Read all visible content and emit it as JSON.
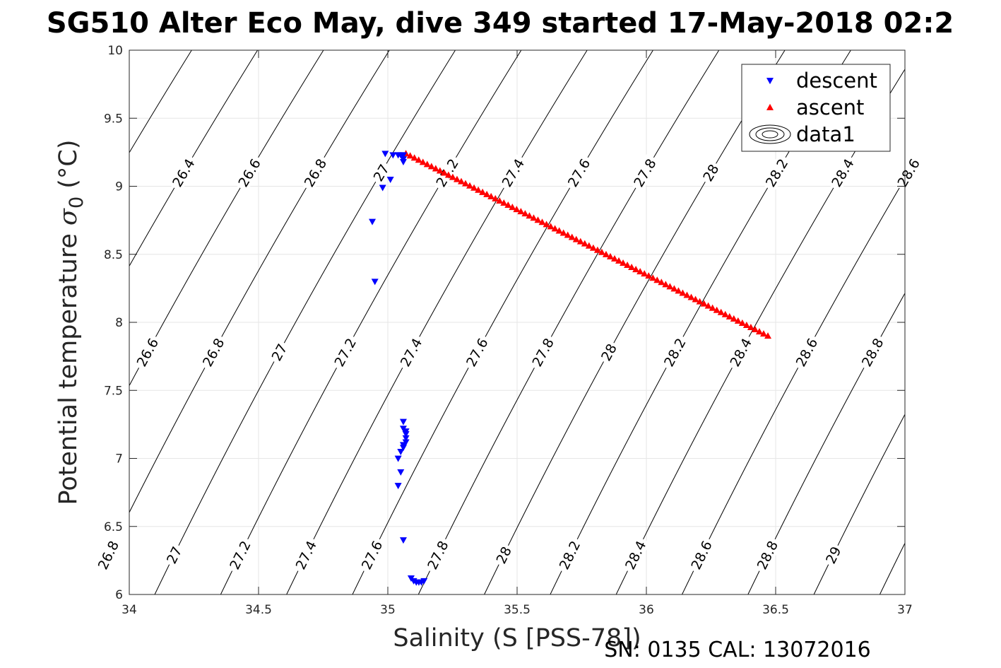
{
  "page_title": "SG510 Alter Eco May, dive 349 started 17-May-2018 02:2",
  "footer": "SN: 0135  CAL: 13072016",
  "chart_data": {
    "type": "scatter",
    "title": "SG510 Alter Eco May, dive 349 started 17-May-2018 02:2",
    "xlabel": "Salinity (S [PSS-78])",
    "ylabel_prefix": "Potential temperature ",
    "ylabel_symbol": "σ",
    "ylabel_subscript": "0",
    "ylabel_suffix": " (°C)",
    "xlim": [
      34,
      37
    ],
    "ylim": [
      6,
      10
    ],
    "x_ticks": [
      34,
      34.5,
      35,
      35.5,
      36,
      36.5,
      37
    ],
    "x_tick_labels": [
      "34",
      "34.5",
      "35",
      "35.5",
      "36",
      "36.5",
      "37"
    ],
    "y_ticks": [
      6,
      6.5,
      7,
      7.5,
      8,
      8.5,
      9,
      9.5,
      10
    ],
    "y_tick_labels": [
      "6",
      "6.5",
      "7",
      "7.5",
      "8",
      "8.5",
      "9",
      "9.5",
      "10"
    ],
    "grid": true,
    "legend_position": "top-right",
    "colors": {
      "descent": "#0000ff",
      "ascent": "#ff0000",
      "contour": "#000000",
      "grid": "#e6e6e6"
    },
    "series": [
      {
        "name": "descent",
        "marker": "triangle-down",
        "color": "#0000ff",
        "points": [
          [
            34.99,
            9.24
          ],
          [
            35.02,
            9.23
          ],
          [
            35.04,
            9.23
          ],
          [
            35.05,
            9.23
          ],
          [
            35.06,
            9.23
          ],
          [
            35.06,
            9.2
          ],
          [
            35.06,
            9.18
          ],
          [
            35.01,
            9.05
          ],
          [
            34.98,
            8.99
          ],
          [
            34.94,
            8.74
          ],
          [
            34.95,
            8.3
          ],
          [
            35.06,
            7.27
          ],
          [
            35.06,
            7.22
          ],
          [
            35.07,
            7.2
          ],
          [
            35.07,
            7.18
          ],
          [
            35.07,
            7.15
          ],
          [
            35.07,
            7.12
          ],
          [
            35.06,
            7.1
          ],
          [
            35.06,
            7.08
          ],
          [
            35.05,
            7.05
          ],
          [
            35.04,
            7.0
          ],
          [
            35.05,
            6.9
          ],
          [
            35.04,
            6.8
          ],
          [
            35.06,
            6.4
          ],
          [
            35.09,
            6.12
          ],
          [
            35.1,
            6.1
          ],
          [
            35.11,
            6.09
          ],
          [
            35.12,
            6.09
          ],
          [
            35.13,
            6.09
          ],
          [
            35.14,
            6.1
          ]
        ]
      },
      {
        "name": "ascent",
        "marker": "triangle-up",
        "color": "#ff0000",
        "start": [
          35.07,
          9.24
        ],
        "end": [
          36.47,
          7.9
        ],
        "count": 86
      },
      {
        "name": "data1",
        "marker": "contour",
        "color": "#000000"
      }
    ],
    "isopycnals": {
      "levels": [
        26.2,
        26.4,
        26.6,
        26.8,
        27.0,
        27.2,
        27.4,
        27.6,
        27.8,
        28.0,
        28.2,
        28.4,
        28.6,
        28.8,
        29.0,
        29.2
      ],
      "label_rows": [
        {
          "y": 9.1,
          "labels": [
            "26.4",
            "26.6",
            "26.8",
            "27",
            "27.2",
            "27.4",
            "27.6",
            "27.8",
            "28",
            "28.2",
            "28.4",
            "28.6"
          ]
        },
        {
          "y": 7.78,
          "labels": [
            "26.6",
            "26.8",
            "27",
            "27.2",
            "27.4",
            "27.6",
            "27.8",
            "28",
            "28.2",
            "28.4",
            "28.6",
            "28.8"
          ]
        },
        {
          "y": 6.29,
          "labels": [
            "26.8",
            "27",
            "27.2",
            "27.4",
            "27.6",
            "27.8",
            "28",
            "28.2",
            "28.4",
            "28.6",
            "28.8",
            "29"
          ]
        }
      ]
    },
    "legend": [
      {
        "label": "descent",
        "marker": "triangle-down",
        "color": "#0000ff"
      },
      {
        "label": "ascent",
        "marker": "triangle-up",
        "color": "#ff0000"
      },
      {
        "label": "data1",
        "marker": "contour",
        "color": "#000000"
      }
    ]
  }
}
